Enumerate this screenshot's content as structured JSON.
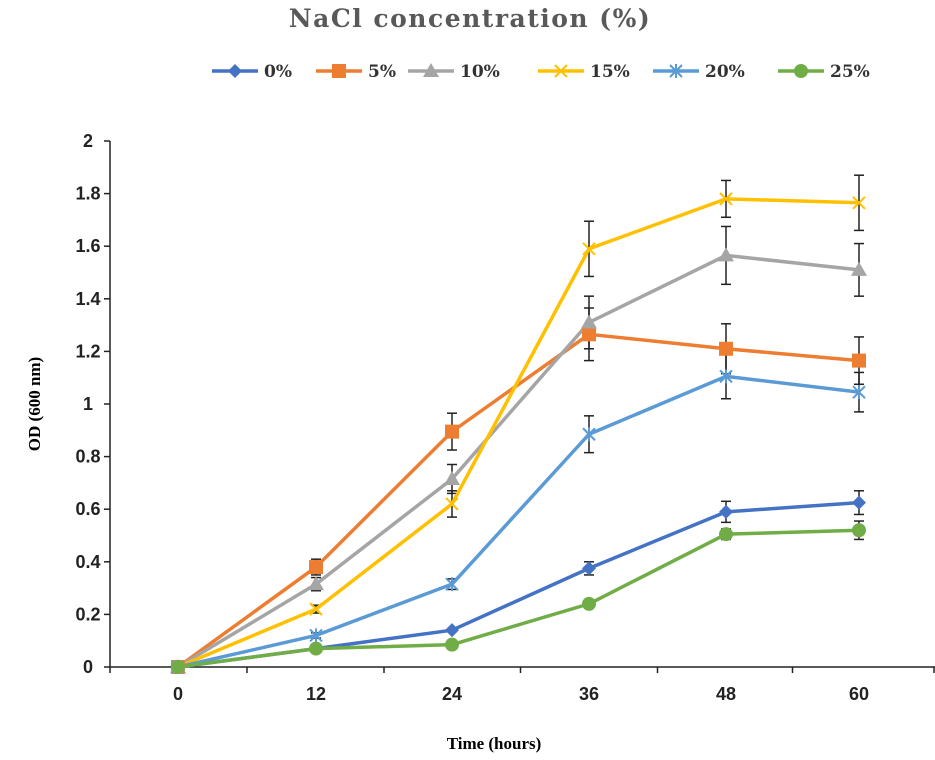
{
  "chart_data": {
    "type": "line",
    "title": "NaCl concentration (%)",
    "xlabel": "Time (hours)",
    "ylabel": "OD (600 nm)",
    "x": [
      0,
      12,
      24,
      36,
      48,
      60
    ],
    "x_tick_labels": [
      "0",
      "12",
      "24",
      "36",
      "48",
      "60"
    ],
    "ylim": [
      0,
      2
    ],
    "y_tick_labels": [
      "0",
      "0.2",
      "0.4",
      "0.6",
      "0.8",
      "1",
      "1.2",
      "1.4",
      "1.6",
      "1.8",
      "2"
    ],
    "legend_position": "top",
    "grid": false,
    "series": [
      {
        "name": "0%",
        "color": "#4472C4",
        "marker": "diamond",
        "values": [
          0,
          0.07,
          0.14,
          0.375,
          0.59,
          0.625
        ],
        "errors": [
          0,
          0,
          0,
          0.025,
          0.04,
          0.045
        ]
      },
      {
        "name": "5%",
        "color": "#ED7D31",
        "marker": "square",
        "values": [
          0,
          0.38,
          0.895,
          1.265,
          1.21,
          1.165
        ],
        "errors": [
          0,
          0.03,
          0.07,
          0.1,
          0.095,
          0.09
        ]
      },
      {
        "name": "10%",
        "color": "#A5A5A5",
        "marker": "triangle",
        "values": [
          0,
          0.315,
          0.715,
          1.31,
          1.565,
          1.51
        ],
        "errors": [
          0,
          0.025,
          0.055,
          0.1,
          0.11,
          0.1
        ]
      },
      {
        "name": "15%",
        "color": "#FFC000",
        "marker": "x",
        "values": [
          0,
          0.22,
          0.62,
          1.59,
          1.78,
          1.765
        ],
        "errors": [
          0,
          0.015,
          0.05,
          0.105,
          0.07,
          0.105
        ]
      },
      {
        "name": "20%",
        "color": "#5B9BD5",
        "marker": "star",
        "values": [
          0,
          0.12,
          0.315,
          0.885,
          1.105,
          1.045
        ],
        "errors": [
          0,
          0.01,
          0.02,
          0.07,
          0.085,
          0.075
        ]
      },
      {
        "name": "25%",
        "color": "#70AD47",
        "marker": "circle",
        "values": [
          0,
          0.07,
          0.085,
          0.24,
          0.505,
          0.52
        ],
        "errors": [
          0,
          0,
          0,
          0,
          0.02,
          0.035
        ]
      }
    ]
  }
}
